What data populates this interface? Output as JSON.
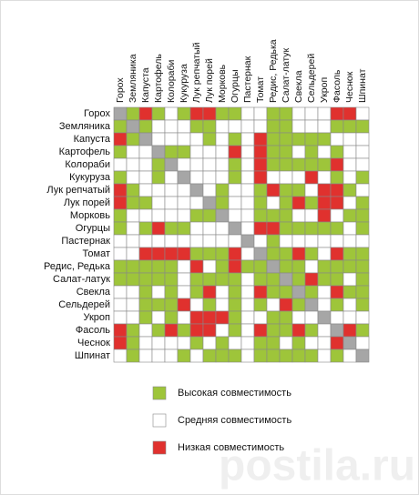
{
  "chart_data": {
    "type": "matrix",
    "categories": [
      "Горох",
      "Земляника",
      "Капуста",
      "Картофель",
      "Колораби",
      "Кукуруза",
      "Лук репчатый",
      "Лук порей",
      "Морковь",
      "Огурцы",
      "Пастернак",
      "Томат",
      "Редис, Редька",
      "Салат-латук",
      "Свекла",
      "Сельдерей",
      "Укроп",
      "Фасоль",
      "Чеснок",
      "Шпинат"
    ],
    "levels": [
      {
        "name": "Высокая совместимость",
        "value": 2,
        "color": "#9ec53a"
      },
      {
        "name": "Средняя совместимость",
        "value": 1,
        "color": "#ffffff"
      },
      {
        "name": "Низкая совместимость",
        "value": 0,
        "color": "#e0312e"
      }
    ],
    "diagonal_color": "#a6a6a6",
    "matrix": [
      [
        null,
        2,
        0,
        2,
        1,
        2,
        0,
        0,
        2,
        2,
        1,
        1,
        2,
        2,
        1,
        1,
        1,
        0,
        0,
        1
      ],
      [
        2,
        null,
        2,
        1,
        1,
        1,
        2,
        2,
        1,
        1,
        1,
        1,
        2,
        2,
        1,
        1,
        1,
        2,
        2,
        2
      ],
      [
        0,
        2,
        null,
        1,
        1,
        1,
        1,
        2,
        1,
        2,
        1,
        0,
        2,
        2,
        2,
        2,
        2,
        1,
        1,
        1
      ],
      [
        2,
        1,
        1,
        null,
        2,
        2,
        1,
        1,
        1,
        0,
        1,
        0,
        2,
        2,
        1,
        2,
        1,
        2,
        1,
        1
      ],
      [
        1,
        1,
        1,
        2,
        null,
        1,
        1,
        1,
        1,
        2,
        1,
        0,
        2,
        2,
        2,
        2,
        2,
        0,
        1,
        1
      ],
      [
        2,
        1,
        1,
        2,
        1,
        null,
        1,
        1,
        1,
        2,
        1,
        0,
        1,
        1,
        1,
        0,
        1,
        2,
        1,
        2
      ],
      [
        0,
        2,
        1,
        1,
        1,
        1,
        null,
        1,
        2,
        1,
        1,
        2,
        0,
        2,
        2,
        1,
        0,
        0,
        2,
        1
      ],
      [
        0,
        2,
        2,
        1,
        1,
        1,
        1,
        null,
        2,
        1,
        1,
        2,
        1,
        2,
        0,
        2,
        0,
        0,
        1,
        2
      ],
      [
        2,
        1,
        1,
        1,
        1,
        1,
        2,
        2,
        null,
        1,
        1,
        2,
        2,
        2,
        1,
        1,
        0,
        1,
        2,
        2
      ],
      [
        2,
        1,
        2,
        0,
        2,
        2,
        1,
        1,
        1,
        null,
        1,
        0,
        0,
        2,
        2,
        2,
        2,
        2,
        1,
        2
      ],
      [
        1,
        1,
        1,
        1,
        1,
        1,
        1,
        1,
        1,
        1,
        null,
        1,
        2,
        1,
        1,
        1,
        1,
        1,
        1,
        1
      ],
      [
        1,
        1,
        0,
        0,
        0,
        0,
        2,
        2,
        2,
        0,
        1,
        null,
        2,
        2,
        0,
        2,
        1,
        0,
        2,
        2
      ],
      [
        2,
        2,
        2,
        2,
        2,
        1,
        0,
        1,
        2,
        0,
        2,
        2,
        null,
        2,
        2,
        1,
        2,
        2,
        2,
        2
      ],
      [
        2,
        2,
        2,
        2,
        2,
        1,
        2,
        2,
        2,
        2,
        1,
        2,
        2,
        null,
        2,
        0,
        2,
        2,
        1,
        2
      ],
      [
        1,
        1,
        2,
        1,
        2,
        1,
        2,
        0,
        1,
        2,
        1,
        0,
        2,
        2,
        null,
        2,
        1,
        0,
        2,
        2
      ],
      [
        1,
        1,
        2,
        2,
        2,
        0,
        1,
        2,
        1,
        2,
        1,
        2,
        1,
        0,
        2,
        null,
        1,
        2,
        1,
        2
      ],
      [
        1,
        1,
        2,
        1,
        2,
        1,
        0,
        0,
        0,
        2,
        1,
        1,
        2,
        2,
        1,
        1,
        null,
        1,
        1,
        1
      ],
      [
        0,
        2,
        1,
        2,
        0,
        2,
        0,
        0,
        1,
        2,
        1,
        0,
        2,
        2,
        0,
        2,
        1,
        null,
        0,
        2
      ],
      [
        0,
        2,
        1,
        1,
        1,
        1,
        2,
        1,
        2,
        1,
        1,
        2,
        2,
        1,
        2,
        1,
        1,
        0,
        null,
        1
      ],
      [
        1,
        2,
        1,
        1,
        1,
        2,
        1,
        2,
        2,
        2,
        1,
        2,
        2,
        2,
        2,
        2,
        1,
        2,
        1,
        null
      ]
    ],
    "watermark": "postila.ru"
  }
}
